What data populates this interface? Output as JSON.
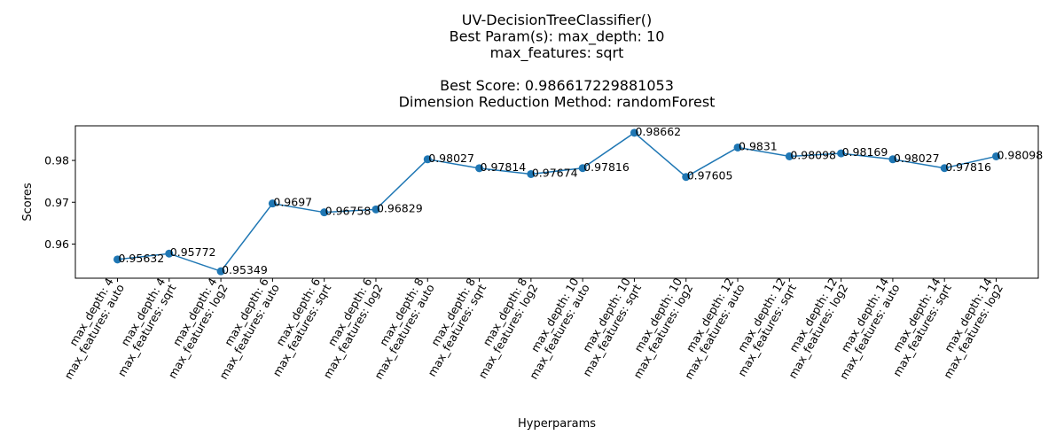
{
  "chart_data": {
    "type": "line",
    "title_lines": [
      "UV-DecisionTreeClassifier()",
      "Best Param(s): max_depth: 10",
      "max_features: sqrt",
      "",
      "Best Score: 0.986617229881053",
      "Dimension Reduction Method: randomForest"
    ],
    "xlabel": "Hyperparams",
    "ylabel": "Scores",
    "categories": [
      [
        "max_depth: 4",
        "max_features: auto"
      ],
      [
        "max_depth: 4",
        "max_features: sqrt"
      ],
      [
        "max_depth: 4",
        "max_features: log2"
      ],
      [
        "max_depth: 6",
        "max_features: auto"
      ],
      [
        "max_depth: 6",
        "max_features: sqrt"
      ],
      [
        "max_depth: 6",
        "max_features: log2"
      ],
      [
        "max_depth: 8",
        "max_features: auto"
      ],
      [
        "max_depth: 8",
        "max_features: sqrt"
      ],
      [
        "max_depth: 8",
        "max_features: log2"
      ],
      [
        "max_depth: 10",
        "max_features: auto"
      ],
      [
        "max_depth: 10",
        "max_features: sqrt"
      ],
      [
        "max_depth: 10",
        "max_features: log2"
      ],
      [
        "max_depth: 12",
        "max_features: auto"
      ],
      [
        "max_depth: 12",
        "max_features: sqrt"
      ],
      [
        "max_depth: 12",
        "max_features: log2"
      ],
      [
        "max_depth: 14",
        "max_features: auto"
      ],
      [
        "max_depth: 14",
        "max_features: sqrt"
      ],
      [
        "max_depth: 14",
        "max_features: log2"
      ]
    ],
    "values": [
      0.95632,
      0.95772,
      0.95349,
      0.9697,
      0.96758,
      0.96829,
      0.98027,
      0.97814,
      0.97674,
      0.97816,
      0.98662,
      0.97605,
      0.9831,
      0.98098,
      0.98169,
      0.98027,
      0.97816,
      0.98098
    ],
    "value_labels": [
      "0.95632",
      "0.95772",
      "0.95349",
      "0.9697",
      "0.96758",
      "0.96829",
      "0.98027",
      "0.97814",
      "0.97674",
      "0.97816",
      "0.98662",
      "0.97605",
      "0.9831",
      "0.98098",
      "0.98169",
      "0.98027",
      "0.97816",
      "0.98098"
    ],
    "yticks": [
      0.96,
      0.97,
      0.98
    ],
    "ytick_labels": [
      "0.96",
      "0.97",
      "0.98"
    ],
    "ylim": [
      0.95183,
      0.98828
    ],
    "grid": false,
    "line_color": "#1f77b4",
    "marker_color": "#1f77b4"
  }
}
